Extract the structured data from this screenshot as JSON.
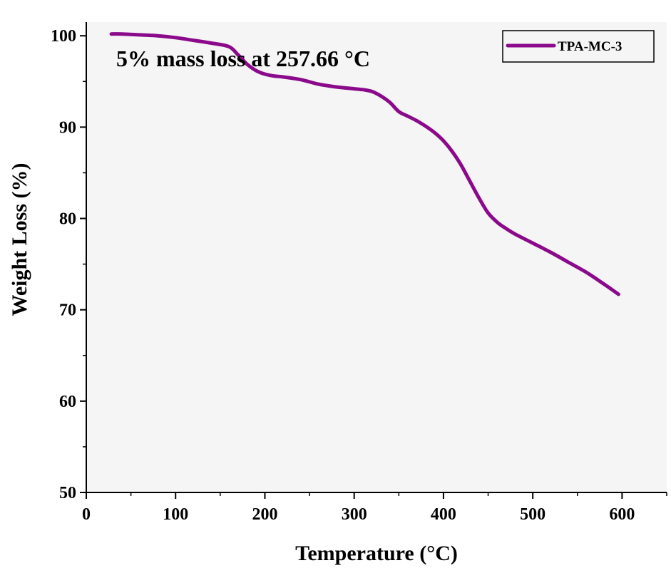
{
  "chart_data": {
    "type": "line",
    "xlabel": "Temperature (°C)",
    "ylabel": "Weight Loss (%)",
    "xlim": [
      0,
      650
    ],
    "ylim": [
      50,
      101.5
    ],
    "xticks": [
      0,
      100,
      200,
      300,
      400,
      500,
      600
    ],
    "yticks": [
      50,
      60,
      70,
      80,
      90,
      100
    ],
    "grid": false,
    "legend_position": "top-right",
    "annotation": "5% mass loss at 257.66 °C",
    "colors": {
      "series": "#8b0a8b",
      "plot_background": "#f5f5f5",
      "axis": "#000000"
    },
    "series": [
      {
        "name": "TPA-MC-3",
        "x": [
          28,
          40,
          60,
          80,
          100,
          120,
          140,
          160,
          170,
          180,
          190,
          200,
          210,
          220,
          240,
          260,
          280,
          300,
          310,
          320,
          330,
          340,
          350,
          360,
          370,
          380,
          390,
          400,
          410,
          420,
          430,
          440,
          450,
          460,
          470,
          480,
          500,
          520,
          540,
          560,
          580,
          596
        ],
        "y": [
          100.2,
          100.2,
          100.1,
          100.0,
          99.8,
          99.5,
          99.2,
          98.8,
          97.9,
          96.9,
          96.2,
          95.8,
          95.6,
          95.5,
          95.2,
          94.7,
          94.4,
          94.2,
          94.1,
          93.9,
          93.4,
          92.7,
          91.7,
          91.2,
          90.7,
          90.1,
          89.4,
          88.5,
          87.3,
          85.8,
          84.0,
          82.2,
          80.6,
          79.6,
          78.9,
          78.3,
          77.3,
          76.3,
          75.2,
          74.1,
          72.8,
          71.7
        ]
      }
    ]
  }
}
